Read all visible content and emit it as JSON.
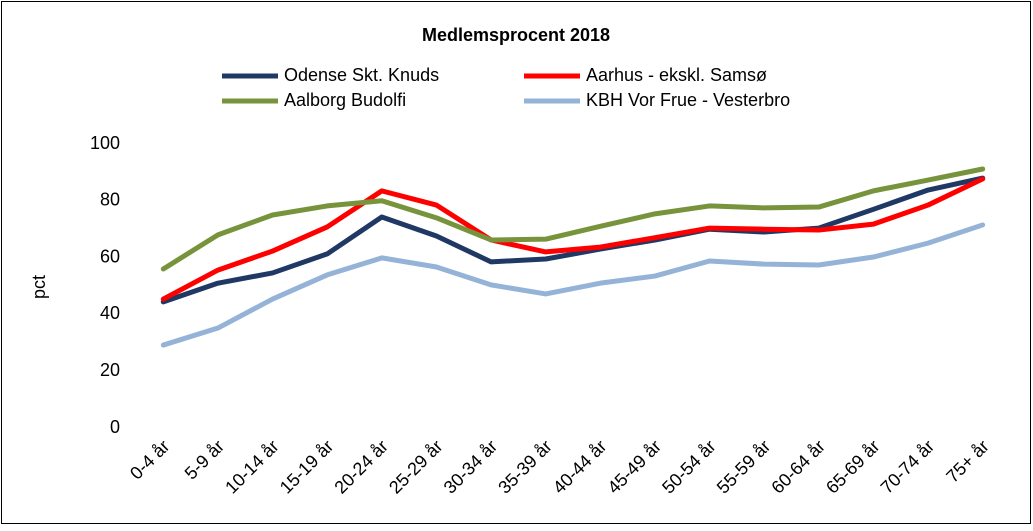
{
  "chart_data": {
    "type": "line",
    "title": "Medlemsprocent 2018",
    "y_label": "pct",
    "categories": [
      "0-4 år",
      "5-9 år",
      "10-14 år",
      "15-19 år",
      "20-24 år",
      "25-29 år",
      "30-34 år",
      "35-39 år",
      "40-44 år",
      "45-49 år",
      "50-54 år",
      "55-59 år",
      "60-64 år",
      "65-69 år",
      "70-74 år",
      "75+ år"
    ],
    "series": [
      {
        "name": "Odense Skt. Knuds",
        "color": "#203864",
        "values": [
          44.4,
          51,
          54.6,
          61.3,
          74.3,
          67.6,
          58.5,
          59.5,
          63,
          66.2,
          70,
          69,
          70.4,
          77,
          83.8,
          88
        ]
      },
      {
        "name": "Aarhus - ekskl. Samsø",
        "color": "#ff0000",
        "values": [
          45.4,
          55.6,
          62.3,
          70.8,
          83.5,
          78.5,
          66.2,
          62,
          63.7,
          67,
          70.4,
          70,
          69.7,
          71.8,
          78.5,
          87.7
        ]
      },
      {
        "name": "Aalborg Budolfi",
        "color": "#77933c",
        "values": [
          56,
          68,
          75,
          78.2,
          80,
          74,
          66.2,
          66.5,
          71,
          75.4,
          78.2,
          77.5,
          77.8,
          83.5,
          87.3,
          91.2
        ]
      },
      {
        "name": "KBH Vor Frue - Vesterbro",
        "color": "#95b3d7",
        "values": [
          29.2,
          35.2,
          45.4,
          53.9,
          59.9,
          56.7,
          50.4,
          47.2,
          51,
          53.5,
          58.8,
          57.7,
          57.4,
          60.2,
          65.1,
          71.5
        ]
      }
    ],
    "ylim": [
      0,
      100
    ],
    "yticks": [
      0,
      20,
      40,
      60,
      80,
      100
    ],
    "grid": false
  }
}
